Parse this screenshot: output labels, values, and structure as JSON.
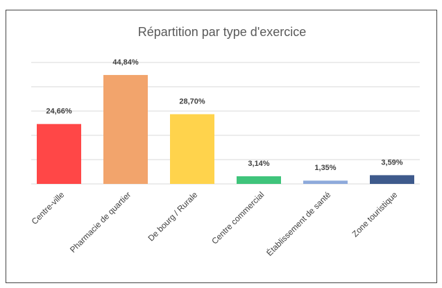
{
  "chart_data": {
    "type": "bar",
    "title": "Répartition par type d'exercice",
    "categories": [
      "Centre-ville",
      "Pharmacie de quartier",
      "De bourg / Rurale",
      "Centre commercial",
      "Établissement de santé",
      "Zone touristique"
    ],
    "values": [
      24.66,
      44.84,
      28.7,
      3.14,
      1.35,
      3.59
    ],
    "value_labels": [
      "24,66%",
      "44,84%",
      "28,70%",
      "3,14%",
      "1,35%",
      "3,59%"
    ],
    "colors": [
      "#ff4747",
      "#f2a46c",
      "#ffd34c",
      "#3fc47b",
      "#8eaadb",
      "#3e5a8c"
    ],
    "ylim": [
      0,
      50
    ],
    "yticks": [
      0,
      10,
      20,
      30,
      40,
      50
    ],
    "grid": true,
    "ytick_labels": false
  }
}
